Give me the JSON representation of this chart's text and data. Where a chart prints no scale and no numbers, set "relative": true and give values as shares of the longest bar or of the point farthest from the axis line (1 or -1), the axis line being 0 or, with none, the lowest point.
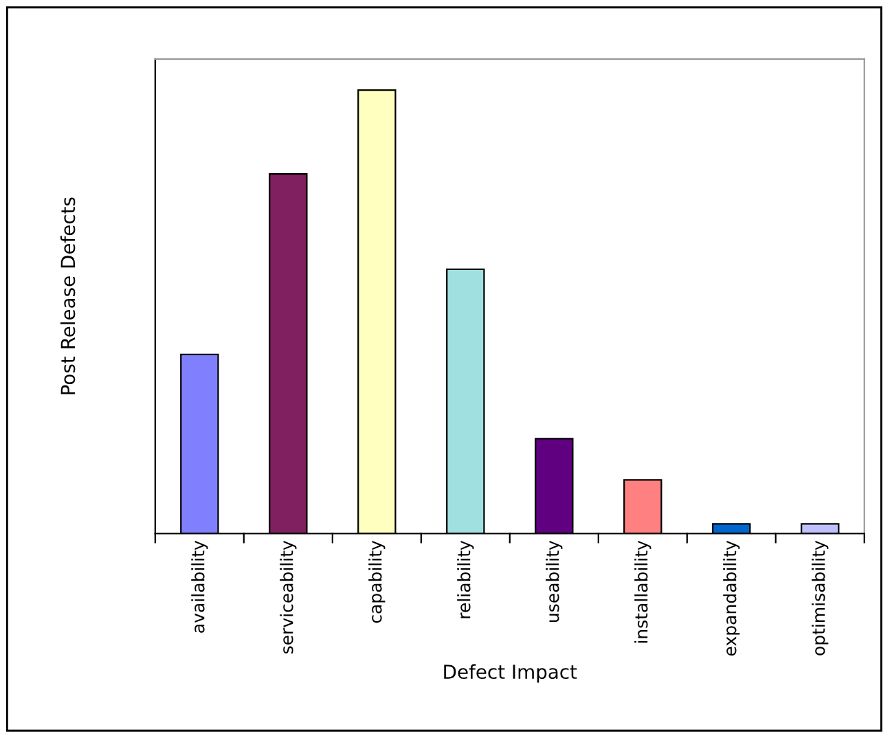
{
  "chart_data": {
    "type": "bar",
    "xlabel": "Defect Impact",
    "ylabel": "Post Release Defects",
    "relative": true,
    "categories": [
      "availability",
      "serviceability",
      "capability",
      "reliability",
      "useability",
      "installability",
      "expandability",
      "optimisability"
    ],
    "values": [
      0.404,
      0.811,
      1,
      0.596,
      0.214,
      0.121,
      0.022,
      0.022
    ],
    "colors": [
      "#8080ff",
      "#802060",
      "#ffffc0",
      "#a0e0e0",
      "#600080",
      "#ff8080",
      "#0066cc",
      "#c0c0ff"
    ],
    "grid": false,
    "legend": false
  }
}
